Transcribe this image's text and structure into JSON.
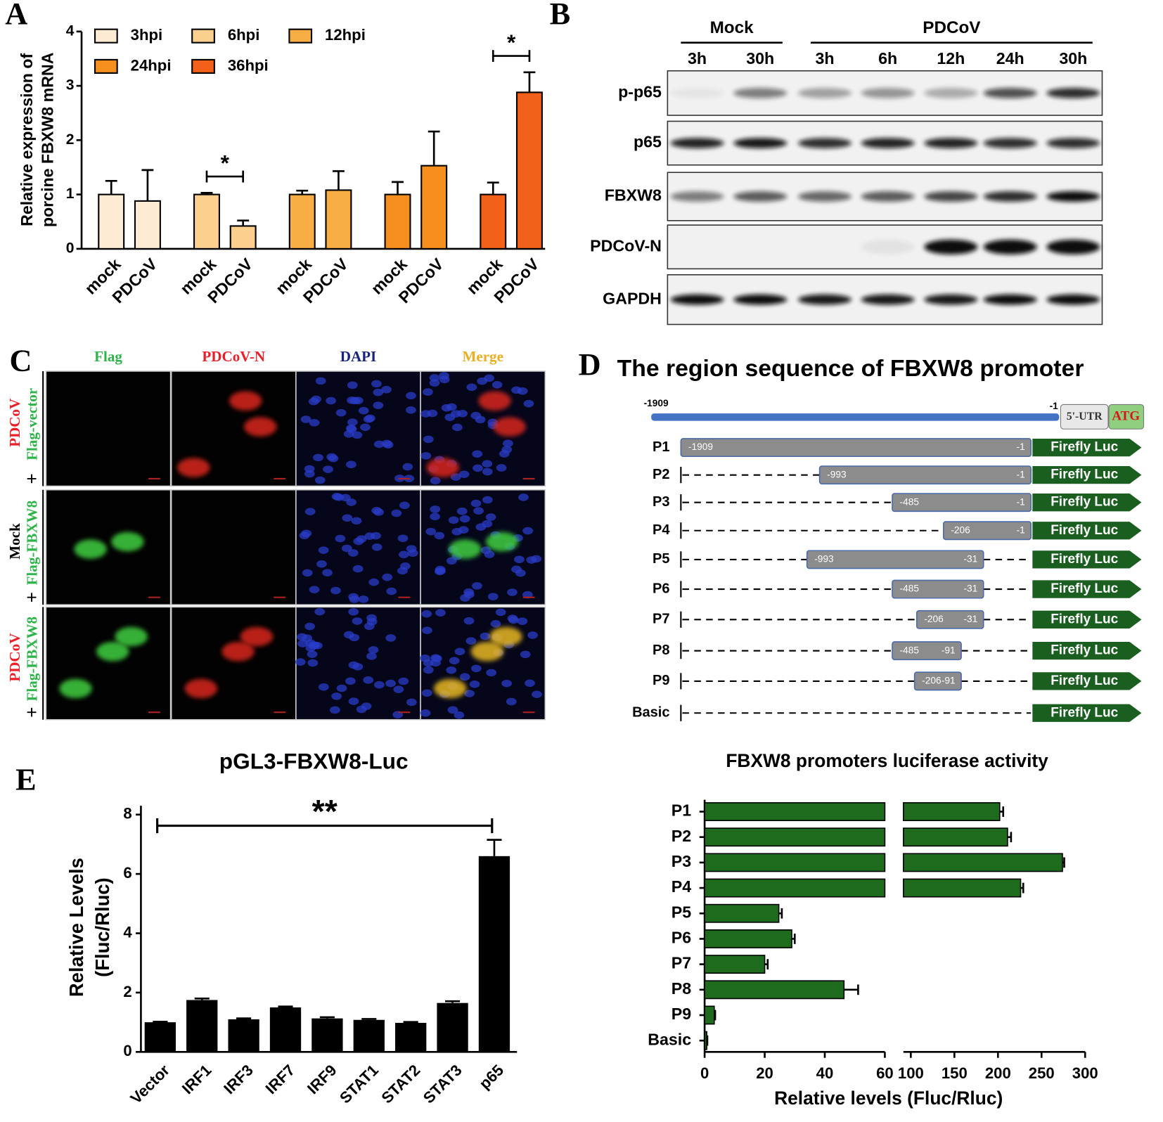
{
  "panel_labels": [
    "A",
    "B",
    "C",
    "D",
    "E"
  ],
  "chart_data": [
    {
      "type": "grouped-bar",
      "ylabel": [
        "Relative expression of",
        "porcine FBXW8 mRNA"
      ],
      "categories": [
        "mock",
        "PDCoV"
      ],
      "series": [
        {
          "name": "3hpi",
          "color": "#fdebd3",
          "values": [
            1.0,
            0.88
          ],
          "errors": [
            0.25,
            0.57
          ]
        },
        {
          "name": "6hpi",
          "color": "#fbd08f",
          "values": [
            1.0,
            0.42
          ],
          "errors": [
            0.03,
            0.1
          ]
        },
        {
          "name": "12hpi",
          "color": "#f8ad45",
          "values": [
            1.0,
            1.08
          ],
          "errors": [
            0.07,
            0.35
          ]
        },
        {
          "name": "24hpi",
          "color": "#f5901e",
          "values": [
            1.0,
            1.53
          ],
          "errors": [
            0.23,
            0.63
          ]
        },
        {
          "name": "36hpi",
          "color": "#f2601a",
          "values": [
            1.0,
            2.88
          ],
          "errors": [
            0.22,
            0.37
          ]
        }
      ],
      "significance": [
        null,
        "*",
        null,
        null,
        "*"
      ],
      "ylim": [
        0,
        4
      ],
      "yticks": [
        0,
        1,
        2,
        3,
        4
      ]
    },
    {
      "type": "bar",
      "title": "pGL3-FBXW8-Luc",
      "ylabel": [
        "Relative Levels",
        "(Fluc/Rluc)"
      ],
      "categories": [
        "Vector",
        "IRF1",
        "IRF3",
        "IRF7",
        "IRF9",
        "STAT1",
        "STAT2",
        "STAT3",
        "p65"
      ],
      "values": [
        1.0,
        1.75,
        1.1,
        1.5,
        1.13,
        1.08,
        0.98,
        1.65,
        6.6
      ],
      "errors": [
        0.02,
        0.05,
        0.03,
        0.03,
        0.04,
        0.03,
        0.03,
        0.06,
        0.55
      ],
      "color": "#000000",
      "significance": "**",
      "ylim": [
        0,
        8
      ],
      "yticks": [
        0,
        2,
        4,
        6,
        8
      ]
    },
    {
      "type": "broken-hbar",
      "title": "FBXW8 promoters luciferase activity",
      "xlabel": "Relative levels (Fluc/Rluc)",
      "categories": [
        "P1",
        "P2",
        "P3",
        "P4",
        "P5",
        "P6",
        "P7",
        "P8",
        "P9",
        "Basic"
      ],
      "values": [
        202,
        211,
        274,
        226,
        24.7,
        29,
        20,
        46.4,
        3.2,
        0.7
      ],
      "errors": [
        4,
        4,
        2,
        3,
        1,
        1,
        1,
        4.7,
        0.3,
        0.2
      ],
      "color": "#1e6b1e",
      "xlims": [
        [
          0,
          60
        ],
        [
          100,
          300
        ]
      ],
      "xticks": [
        [
          0,
          20,
          40,
          60
        ],
        [
          100,
          150,
          200,
          250,
          300
        ]
      ]
    }
  ],
  "blot": {
    "groups": [
      {
        "name": "Mock",
        "lanes": [
          "3h",
          "30h"
        ]
      },
      {
        "name": "PDCoV",
        "lanes": [
          "3h",
          "6h",
          "12h",
          "24h",
          "30h"
        ]
      }
    ],
    "rows": [
      "p-p65",
      "p65",
      "FBXW8",
      "PDCoV-N",
      "GAPDH"
    ]
  },
  "microscopy": {
    "columns": [
      {
        "name": "Flag",
        "color": "#2db34a"
      },
      {
        "name": "PDCoV-N",
        "color": "#e8202a"
      },
      {
        "name": "DAPI",
        "color": "#1a237e"
      },
      {
        "name": "Merge",
        "color": "#e8b020"
      }
    ],
    "rows": [
      [
        "PDCoV",
        "+",
        "Flag-vector"
      ],
      [
        "Mock",
        "+",
        "Flag-FBXW8"
      ],
      [
        "PDCoV",
        "+",
        "Flag-FBXW8"
      ]
    ]
  },
  "promoter": {
    "title": "The region sequence of FBXW8 promoter",
    "start": -1909,
    "end": -1,
    "utr": "5'-UTR",
    "atg": "ATG",
    "reporter": "Firefly Luc",
    "constructs": [
      {
        "name": "P1",
        "from": -1909,
        "to": -1
      },
      {
        "name": "P2",
        "from": -993,
        "to": -1
      },
      {
        "name": "P3",
        "from": -485,
        "to": -1
      },
      {
        "name": "P4",
        "from": -206,
        "to": -1
      },
      {
        "name": "P5",
        "from": -993,
        "to": -31
      },
      {
        "name": "P6",
        "from": -485,
        "to": -31
      },
      {
        "name": "P7",
        "from": -206,
        "to": -31
      },
      {
        "name": "P8",
        "from": -485,
        "to": -91
      },
      {
        "name": "P9",
        "from": -206,
        "to": -91
      },
      {
        "name": "Basic"
      }
    ]
  }
}
